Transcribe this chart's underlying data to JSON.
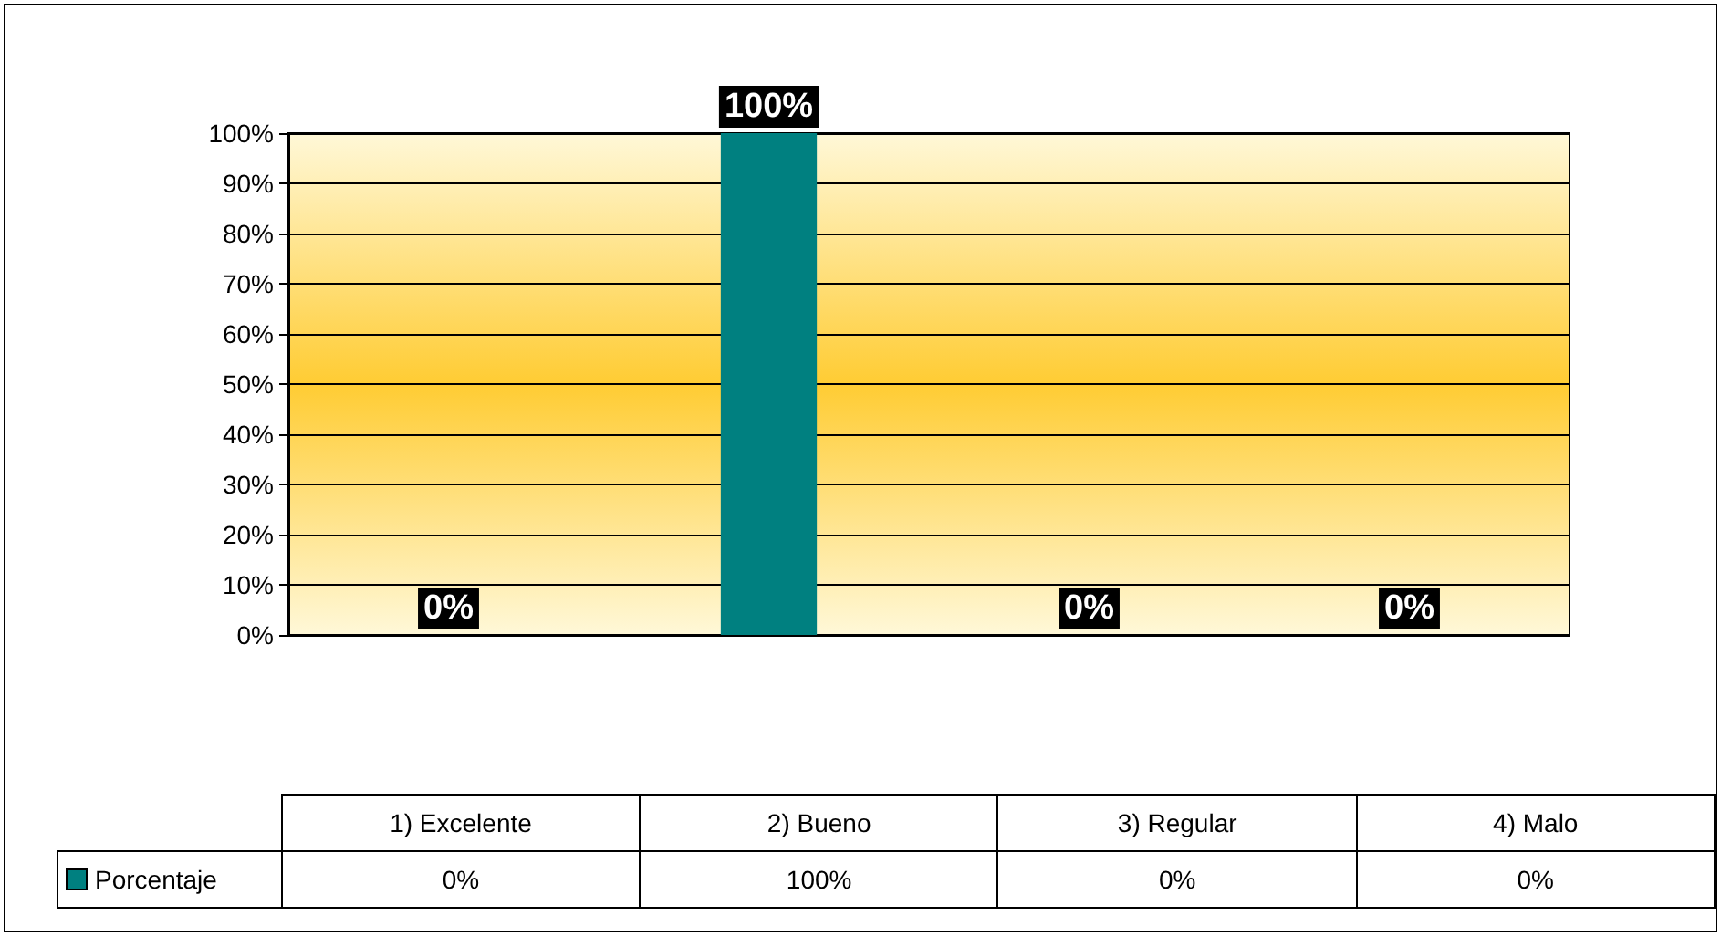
{
  "chart_data": {
    "type": "bar",
    "categories": [
      "1) Excelente",
      "2) Bueno",
      "3) Regular",
      "4) Malo"
    ],
    "series": [
      {
        "name": "Porcentaje",
        "color": "#008080",
        "values": [
          0,
          100,
          0,
          0
        ],
        "value_labels": [
          "0%",
          "100%",
          "0%",
          "0%"
        ]
      }
    ],
    "ylim": [
      0,
      100
    ],
    "yticks": [
      {
        "value": 0,
        "label": "0%"
      },
      {
        "value": 10,
        "label": "10%"
      },
      {
        "value": 20,
        "label": "20%"
      },
      {
        "value": 30,
        "label": "30%"
      },
      {
        "value": 40,
        "label": "40%"
      },
      {
        "value": 50,
        "label": "50%"
      },
      {
        "value": 60,
        "label": "60%"
      },
      {
        "value": 70,
        "label": "70%"
      },
      {
        "value": 80,
        "label": "80%"
      },
      {
        "value": 90,
        "label": "90%"
      },
      {
        "value": 100,
        "label": "100%"
      }
    ],
    "grid": "y",
    "legend": "bottom"
  }
}
